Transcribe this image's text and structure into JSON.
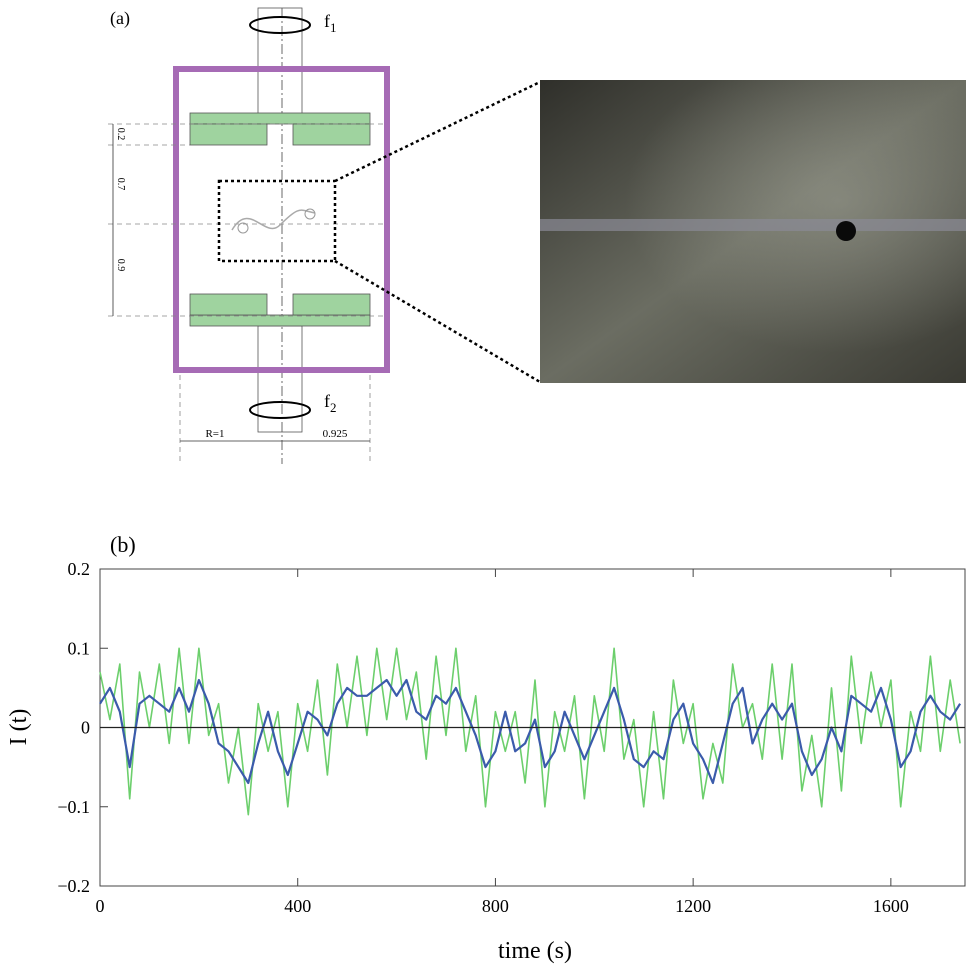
{
  "schematic": {
    "label": "(a)",
    "rotation_top": {
      "symbol": "f",
      "index": "1"
    },
    "rotation_bottom": {
      "symbol": "f",
      "index": "2"
    },
    "dimensions": [
      "0.2",
      "0.7",
      "0.9"
    ],
    "radius": "R=1",
    "gap": "0.925"
  },
  "chart_data": {
    "type": "line",
    "panel_label": "(b)",
    "x_label": "time (s)",
    "y_label": "I (t)",
    "x": [
      0,
      20,
      40,
      60,
      80,
      100,
      120,
      140,
      160,
      180,
      200,
      220,
      240,
      260,
      280,
      300,
      320,
      340,
      360,
      380,
      400,
      420,
      440,
      460,
      480,
      500,
      520,
      540,
      560,
      580,
      600,
      620,
      640,
      660,
      680,
      700,
      720,
      740,
      760,
      780,
      800,
      820,
      840,
      860,
      880,
      900,
      920,
      940,
      960,
      980,
      1000,
      1020,
      1040,
      1060,
      1080,
      1100,
      1120,
      1140,
      1160,
      1180,
      1200,
      1220,
      1240,
      1260,
      1280,
      1300,
      1320,
      1340,
      1360,
      1380,
      1400,
      1420,
      1440,
      1460,
      1480,
      1500,
      1520,
      1540,
      1560,
      1580,
      1600,
      1620,
      1640,
      1660,
      1680,
      1700,
      1720,
      1740
    ],
    "series": [
      {
        "color": "#6ccf6c",
        "values": [
          0.07,
          0.01,
          0.08,
          -0.09,
          0.07,
          0.0,
          0.08,
          -0.02,
          0.1,
          -0.02,
          0.1,
          -0.01,
          0.03,
          -0.07,
          0.0,
          -0.11,
          0.03,
          -0.03,
          0.02,
          -0.1,
          0.03,
          -0.03,
          0.06,
          -0.06,
          0.08,
          0.0,
          0.09,
          -0.01,
          0.1,
          0.01,
          0.1,
          0.01,
          0.07,
          -0.04,
          0.09,
          -0.01,
          0.1,
          -0.03,
          0.04,
          -0.1,
          0.02,
          -0.03,
          0.02,
          -0.07,
          0.06,
          -0.1,
          0.02,
          -0.03,
          0.04,
          -0.09,
          0.04,
          -0.03,
          0.1,
          -0.04,
          0.01,
          -0.1,
          0.02,
          -0.09,
          0.06,
          -0.02,
          0.03,
          -0.09,
          -0.02,
          -0.07,
          0.08,
          0.0,
          0.03,
          -0.04,
          0.08,
          -0.04,
          0.08,
          -0.08,
          -0.01,
          -0.1,
          0.05,
          -0.08,
          0.09,
          -0.02,
          0.07,
          0.0,
          0.06,
          -0.1,
          0.02,
          -0.03,
          0.09,
          -0.03,
          0.06,
          -0.02
        ]
      },
      {
        "color": "#3b5bab",
        "values": [
          0.03,
          0.05,
          0.02,
          -0.05,
          0.03,
          0.04,
          0.03,
          0.02,
          0.05,
          0.02,
          0.06,
          0.03,
          -0.02,
          -0.03,
          -0.05,
          -0.07,
          -0.02,
          0.02,
          -0.03,
          -0.06,
          -0.02,
          0.02,
          0.01,
          -0.01,
          0.03,
          0.05,
          0.04,
          0.04,
          0.05,
          0.06,
          0.04,
          0.06,
          0.02,
          0.01,
          0.04,
          0.03,
          0.05,
          0.02,
          -0.01,
          -0.05,
          -0.03,
          0.02,
          -0.03,
          -0.02,
          0.01,
          -0.05,
          -0.03,
          0.02,
          -0.01,
          -0.04,
          -0.01,
          0.02,
          0.05,
          0.01,
          -0.04,
          -0.05,
          -0.03,
          -0.04,
          0.01,
          0.03,
          -0.02,
          -0.04,
          -0.07,
          -0.02,
          0.03,
          0.05,
          -0.02,
          0.01,
          0.03,
          0.01,
          0.03,
          -0.03,
          -0.06,
          -0.04,
          0.0,
          -0.03,
          0.04,
          0.03,
          0.02,
          0.05,
          0.01,
          -0.05,
          -0.03,
          0.02,
          0.04,
          0.02,
          0.01,
          0.03
        ]
      }
    ],
    "xlim": [
      0,
      1750
    ],
    "ylim": [
      -0.2,
      0.2
    ],
    "xticks": [
      0,
      400,
      800,
      1200,
      1600
    ],
    "yticks": [
      {
        "value": -0.2,
        "label": "−0.2"
      },
      {
        "value": -0.1,
        "label": "−0.1"
      },
      0,
      0.1,
      0.2
    ]
  }
}
